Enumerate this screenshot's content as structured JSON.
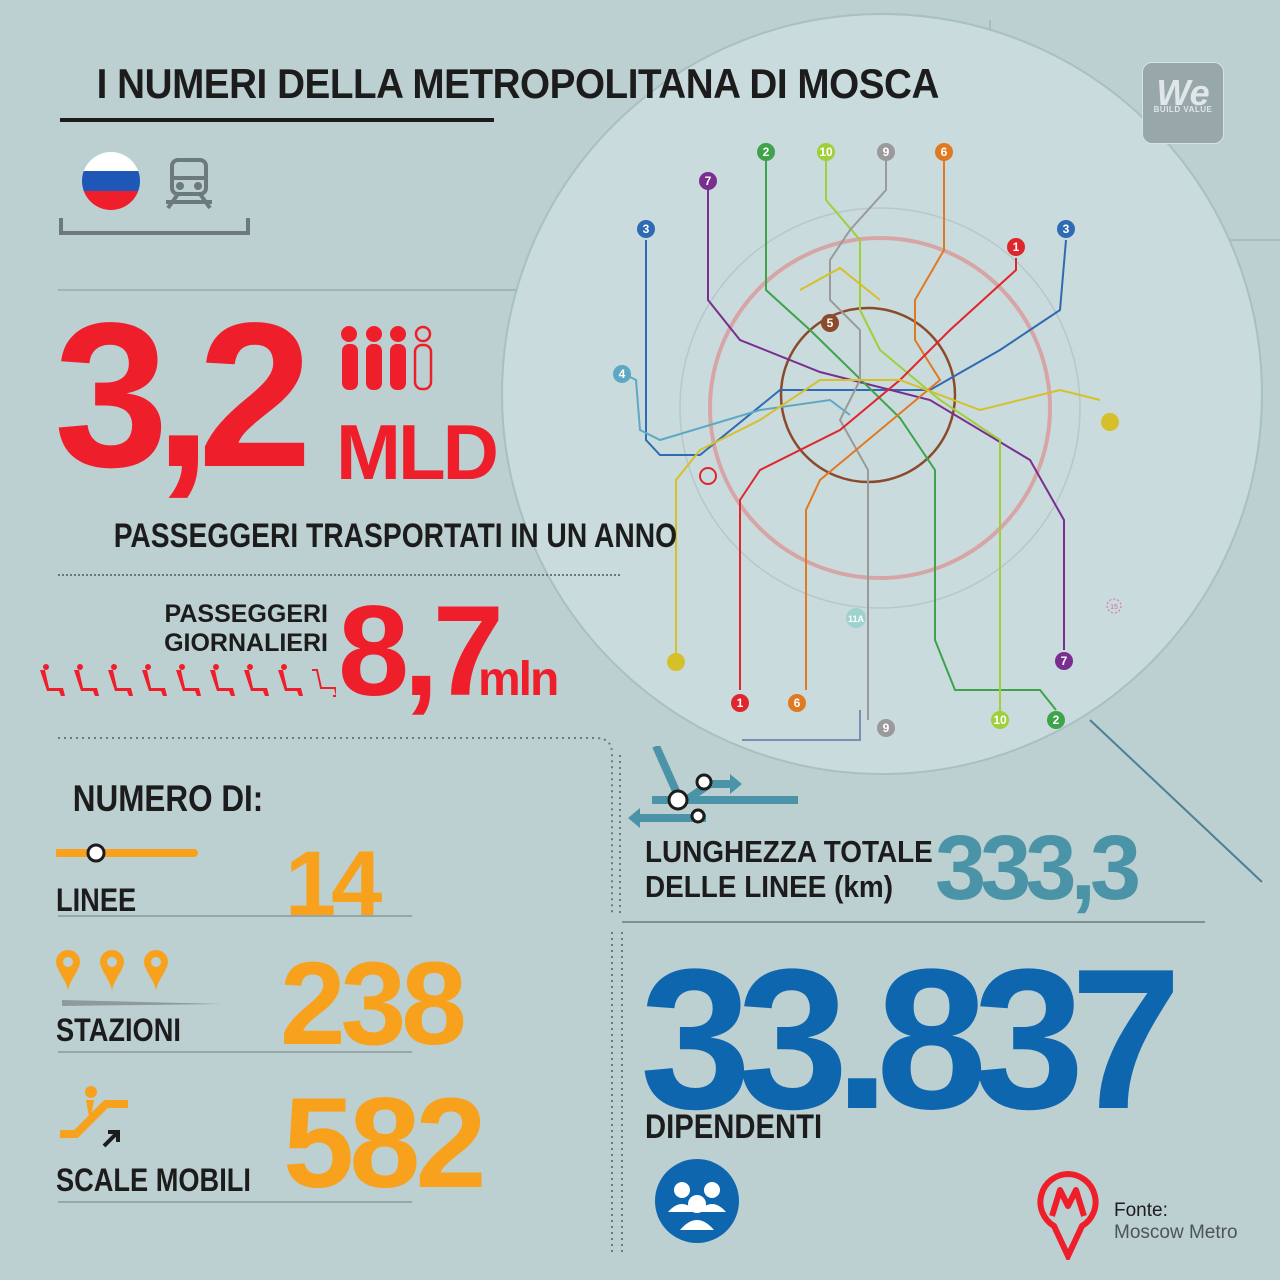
{
  "title": "I NUMERI DELLA METROPOLITANA DI MOSCA",
  "logo": {
    "text": "We",
    "tagline": "BUILD VALUE"
  },
  "passengers_year": {
    "value": "3,2",
    "unit": "MLD",
    "label": "PASSEGGERI TRASPORTATI IN UN ANNO"
  },
  "passengers_daily": {
    "label_line1": "PASSEGGERI",
    "label_line2": "GIORNALIERI",
    "value": "8,7",
    "unit": "mln"
  },
  "numero_di": {
    "heading": "NUMERO DI:",
    "linee": {
      "label": "LINEE",
      "value": "14"
    },
    "stazioni": {
      "label": "STAZIONI",
      "value": "238"
    },
    "scale": {
      "label": "SCALE MOBILI",
      "value": "582"
    }
  },
  "lunghezza": {
    "label_line1": "LUNGHEZZA TOTALE",
    "label_line2": "DELLE LINEE (km)",
    "value": "333,3"
  },
  "dipendenti": {
    "value": "33.837",
    "label": "DIPENDENTI"
  },
  "source": {
    "label": "Fonte:",
    "value": "Moscow Metro"
  },
  "map_labels": [
    "1",
    "2",
    "3",
    "4",
    "5",
    "6",
    "7",
    "9",
    "10",
    "11A",
    "15"
  ],
  "colors": {
    "red": "#ef1e2b",
    "orange": "#f8a11c",
    "teal": "#4b94a8",
    "blue": "#0d66ae",
    "bg": "#bccfd1"
  },
  "icons": [
    "russia-flag-icon",
    "train-icon",
    "people-icon",
    "seat-icon",
    "line-icon",
    "pin-icon",
    "escalator-icon",
    "junction-icon",
    "workers-icon",
    "metro-logo-icon",
    "magnifier-icon"
  ]
}
